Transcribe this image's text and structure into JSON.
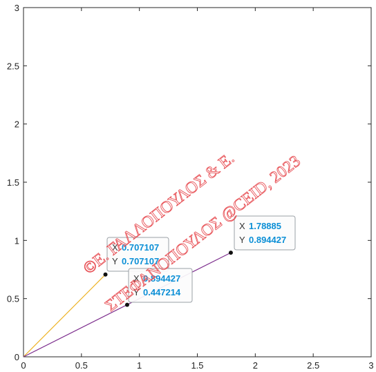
{
  "chart_data": {
    "type": "line",
    "title": "",
    "xlabel": "",
    "ylabel": "",
    "xlim": [
      0,
      3
    ],
    "ylim": [
      0,
      3
    ],
    "xticks": [
      0,
      0.5,
      1,
      1.5,
      2,
      2.5,
      3
    ],
    "xtick_labels": [
      "0",
      "0.5",
      "1",
      "1.5",
      "2",
      "2.5",
      "3"
    ],
    "yticks": [
      0,
      0.5,
      1,
      1.5,
      2,
      2.5,
      3
    ],
    "ytick_labels": [
      "0",
      "0.5",
      "1",
      "1.5",
      "2",
      "2.5",
      "3"
    ],
    "grid": false,
    "series": [
      {
        "color": "#EDB120",
        "x": [
          0,
          0.707107
        ],
        "y": [
          0,
          0.707107
        ]
      },
      {
        "color": "#7E2F8E",
        "x": [
          0,
          1.78885
        ],
        "y": [
          0,
          0.894427
        ]
      }
    ],
    "points": [
      {
        "x": 0.707107,
        "y": 0.707107
      },
      {
        "x": 0.894427,
        "y": 0.447214
      },
      {
        "x": 1.78885,
        "y": 0.894427
      }
    ],
    "datatips": [
      {
        "x_letter": "X",
        "x_value": "0.707107",
        "y_letter": "Y",
        "y_value": "0.707107"
      },
      {
        "x_letter": "X",
        "x_value": "0.894427",
        "y_letter": "Y",
        "y_value": "0.447214"
      },
      {
        "x_letter": "X",
        "x_value": "1.78885",
        "y_letter": "Y",
        "y_value": "0.894427"
      }
    ],
    "value_color": "#0b8fd6",
    "watermark": {
      "line1": "©Ε. ΓΑΛΛΟΠΟΥΛΟΣ & Ε.",
      "line2": "ΣΤΕΦΑΝΟΠΟΥΛΟΣ @CEID, 2023",
      "color": "#e8555a"
    }
  }
}
